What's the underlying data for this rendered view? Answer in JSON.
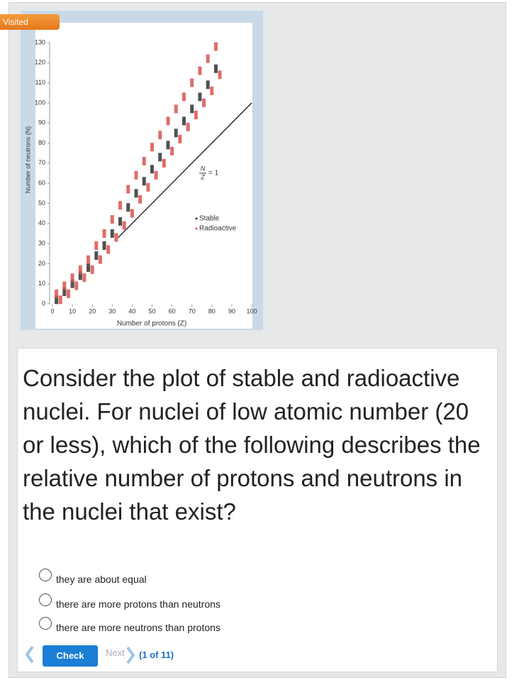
{
  "badge": "Visited",
  "chart_data": {
    "type": "scatter",
    "xlabel": "Number of protons (Z)",
    "ylabel": "Number of neutrons (N)",
    "xlim": [
      0,
      100
    ],
    "ylim": [
      0,
      130
    ],
    "xticks": [
      0,
      10,
      20,
      30,
      40,
      50,
      60,
      70,
      80,
      90,
      100
    ],
    "yticks": [
      0,
      10,
      20,
      30,
      40,
      50,
      60,
      70,
      80,
      90,
      100,
      110,
      120,
      130
    ],
    "legend": "right",
    "annotation": {
      "numerator": "N",
      "denominator": "Z",
      "text": "= 1"
    },
    "reference_line": {
      "x": [
        33,
        100
      ],
      "values": [
        33,
        100
      ],
      "color": "#333333"
    },
    "series": [
      {
        "name": "Stable",
        "color": "#333333",
        "x": [
          2,
          6,
          10,
          14,
          18,
          22,
          26,
          30,
          34,
          38,
          42,
          46,
          50,
          54,
          58,
          62,
          66,
          70,
          74,
          78,
          82
        ],
        "values": [
          2,
          6,
          10,
          14,
          18,
          24,
          29,
          35,
          41,
          48,
          55,
          61,
          67,
          73,
          79,
          85,
          91,
          97,
          103,
          109,
          117
        ]
      },
      {
        "name": "Radioactive",
        "color": "#d9534f",
        "x": [
          2,
          6,
          10,
          14,
          18,
          22,
          26,
          30,
          34,
          38,
          42,
          46,
          50,
          54,
          58,
          62,
          66,
          70,
          74,
          78,
          82,
          4,
          8,
          12,
          16,
          20,
          24,
          28,
          32,
          36,
          40,
          44,
          48,
          52,
          56,
          60,
          64,
          68,
          72,
          76,
          80,
          84
        ],
        "values": [
          5,
          9,
          13,
          17,
          22,
          29,
          35,
          42,
          49,
          57,
          64,
          71,
          78,
          84,
          91,
          97,
          103,
          110,
          116,
          122,
          128,
          2,
          5,
          9,
          13,
          17,
          22,
          27,
          33,
          39,
          45,
          52,
          58,
          64,
          70,
          76,
          82,
          88,
          94,
          100,
          106,
          114
        ]
      }
    ]
  },
  "question": {
    "text": "Consider the plot of stable and radioactive nuclei. For nuclei of low atomic number (20 or less), which of the following describes the relative number of protons and neutrons in the nuclei that exist?",
    "options": [
      "they are about equal",
      "there are more protons than neutrons",
      "there are more neutrons than protons"
    ]
  },
  "controls": {
    "check": "Check",
    "next": "Next",
    "progress": "(1 of 11)"
  }
}
